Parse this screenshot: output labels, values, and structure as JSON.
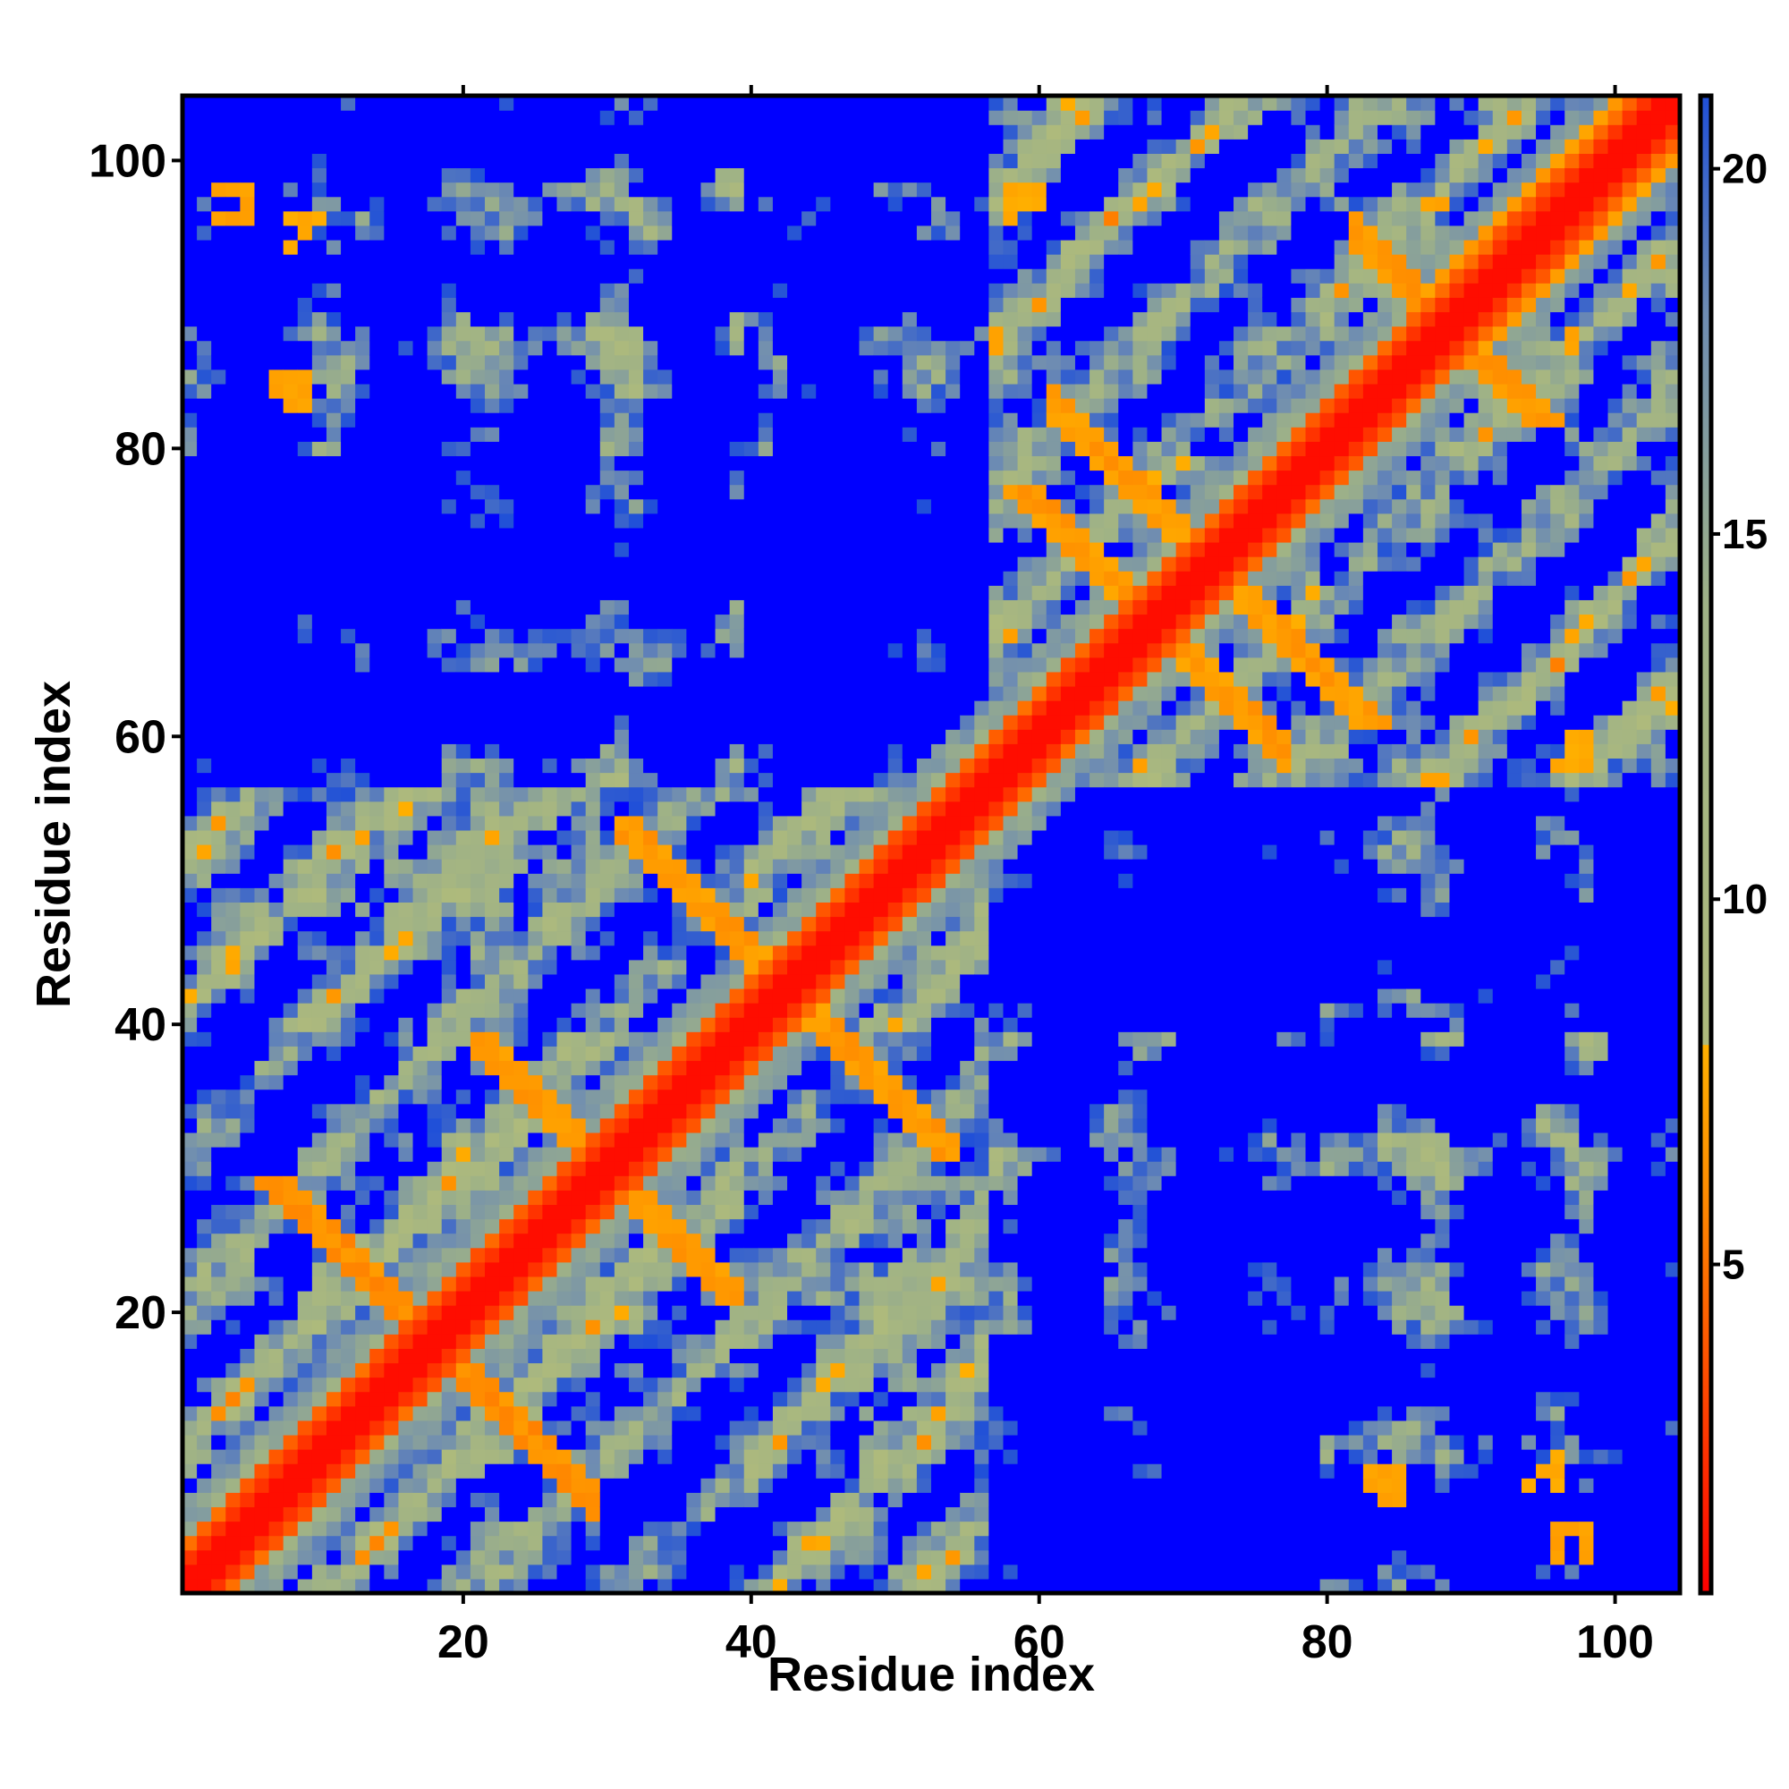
{
  "chart_data": {
    "type": "heatmap",
    "title": "",
    "xlabel": "Residue index",
    "ylabel": "Residue index",
    "n_residues": 104,
    "xlim": [
      0.5,
      104.5
    ],
    "ylim": [
      0.5,
      104.5
    ],
    "x_ticks": [
      20,
      40,
      60,
      80,
      100
    ],
    "y_ticks": [
      20,
      40,
      60,
      80,
      100
    ],
    "x_tick_labels": [
      "20",
      "40",
      "60",
      "80",
      "100"
    ],
    "y_tick_labels": [
      "20",
      "40",
      "60",
      "80",
      "100"
    ],
    "colorbar": {
      "range": [
        0.5,
        21
      ],
      "ticks": [
        5,
        10,
        15,
        20
      ],
      "tick_labels": [
        "5",
        "10",
        "15",
        "20"
      ],
      "stops": [
        {
          "value": 0.5,
          "color": "#ff0000"
        },
        {
          "value": 4.0,
          "color": "#ff5a00"
        },
        {
          "value": 6.0,
          "color": "#ff8c00"
        },
        {
          "value": 8.0,
          "color": "#ffb000"
        },
        {
          "value": 8.01,
          "color": "#aeba7c"
        },
        {
          "value": 14.0,
          "color": "#9fb286"
        },
        {
          "value": 18.0,
          "color": "#6e8cb2"
        },
        {
          "value": 21.0,
          "color": "#2050d8"
        }
      ],
      "cutoff_value": 21,
      "cutoff_color": "#0000ff"
    },
    "grid": false,
    "legend": "colorbar right",
    "contact_features": [
      {
        "kind": "diagonal",
        "description": "main diagonal i=j",
        "value": 1.5
      },
      {
        "kind": "antiparallel",
        "center": [
          9,
          27
        ],
        "span": [
          1,
          29
        ],
        "value": 5.5
      },
      {
        "kind": "antiparallel",
        "center": [
          25,
          35
        ],
        "span": [
          21,
          39
        ],
        "value": 6.0
      },
      {
        "kind": "antiparallel",
        "center": [
          34,
          51
        ],
        "span": [
          31,
          54
        ],
        "value": 6.0
      },
      {
        "kind": "antiparallel",
        "center": [
          63,
          73
        ],
        "span": [
          57,
          77
        ],
        "value": 6.0
      },
      {
        "kind": "antiparallel",
        "center": [
          67,
          77
        ],
        "span": [
          61,
          84
        ],
        "value": 6.0
      },
      {
        "kind": "antiparallel",
        "center": [
          86,
          91
        ],
        "span": [
          82,
          96
        ],
        "value": 6.0
      },
      {
        "kind": "parallel_band",
        "range": [
          88,
          104
        ],
        "offset": 4,
        "value": 6.5
      },
      {
        "kind": "patch",
        "center": [
          84,
          8
        ],
        "value": 6.5
      },
      {
        "kind": "patch",
        "center": [
          97,
          4
        ],
        "value": 6.5
      },
      {
        "kind": "patch",
        "center": [
          97,
          59
        ],
        "value": 7.0
      },
      {
        "kind": "patch",
        "center": [
          9,
          95
        ],
        "value": 7.0
      }
    ]
  }
}
